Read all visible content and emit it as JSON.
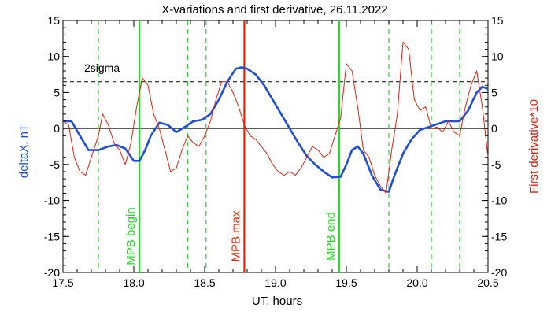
{
  "chart_data": {
    "type": "line",
    "title": "X-variations and first derivative, 26.11.2022",
    "xlabel": "UT, hours",
    "ylabel_left": "deltaX, nT",
    "ylabel_right": "First derivative*10",
    "xlim": [
      17.5,
      20.5
    ],
    "ylim": [
      -20,
      15
    ],
    "x_ticks": [
      17.5,
      18.0,
      18.5,
      19.0,
      19.5,
      20.0,
      20.5
    ],
    "x_tick_labels": [
      "17.5",
      "18.0",
      "18.5",
      "19.0",
      "19.5",
      "20.0",
      "20.5"
    ],
    "y_ticks": [
      -20,
      -15,
      -10,
      -5,
      0,
      5,
      10,
      15
    ],
    "y_tick_labels": [
      "-20",
      "-15",
      "-10",
      "-5",
      "0",
      "5",
      "10",
      "15"
    ],
    "grid": false,
    "colors": {
      "deltaX": "#1f4fd6",
      "derivative": "#e02010",
      "mpb_begin_end": "#22dd22",
      "mpb_max": "#ee2200",
      "dashed_green": "#33cc33",
      "zero_line": "#000000",
      "sigma_line": "#000000",
      "title": "#000000",
      "ylabel_left": "#1f4fd6",
      "ylabel_right": "#e02010"
    },
    "threshold": {
      "label": "2sigma",
      "y": 6.5,
      "style": "dashed"
    },
    "zero_line": 0,
    "vertical_lines": [
      {
        "x": 18.04,
        "label": "MPB begin",
        "color": "mpb_begin_end",
        "style": "solid"
      },
      {
        "x": 18.78,
        "label": "MPB max",
        "color": "mpb_max",
        "style": "solid"
      },
      {
        "x": 19.45,
        "label": "MPB end",
        "color": "mpb_begin_end",
        "style": "solid"
      }
    ],
    "dashed_vertical_lines": [
      17.75,
      18.38,
      18.51,
      19.8,
      20.1,
      20.3
    ],
    "series": [
      {
        "key": "deltaX",
        "x": [
          17.5,
          17.56,
          17.62,
          17.68,
          17.75,
          17.82,
          17.88,
          17.94,
          18.0,
          18.04,
          18.08,
          18.12,
          18.18,
          18.24,
          18.3,
          18.36,
          18.42,
          18.48,
          18.54,
          18.6,
          18.66,
          18.72,
          18.76,
          18.8,
          18.86,
          18.92,
          18.98,
          19.04,
          19.1,
          19.16,
          19.22,
          19.28,
          19.34,
          19.4,
          19.46,
          19.5,
          19.54,
          19.58,
          19.62,
          19.68,
          19.74,
          19.8,
          19.84,
          19.9,
          19.96,
          20.02,
          20.08,
          20.14,
          20.2,
          20.26,
          20.3,
          20.36,
          20.42,
          20.46,
          20.5
        ],
        "values": [
          1.0,
          1.0,
          -1.0,
          -3.0,
          -3.0,
          -2.5,
          -2.3,
          -2.8,
          -4.5,
          -4.5,
          -3.0,
          -1.0,
          0.8,
          0.5,
          -0.5,
          0.2,
          1.0,
          1.2,
          2.0,
          4.0,
          6.5,
          8.3,
          8.5,
          8.3,
          7.5,
          6.0,
          4.0,
          2.0,
          0.0,
          -2.0,
          -3.8,
          -5.0,
          -6.0,
          -6.8,
          -6.7,
          -5.0,
          -3.0,
          -2.5,
          -3.5,
          -6.5,
          -8.5,
          -8.8,
          -6.5,
          -3.5,
          -1.5,
          -0.2,
          0.2,
          0.6,
          1.0,
          1.0,
          1.0,
          2.5,
          5.0,
          5.8,
          5.5
        ]
      },
      {
        "key": "derivative",
        "x": [
          17.5,
          17.54,
          17.58,
          17.62,
          17.66,
          17.7,
          17.75,
          17.78,
          17.82,
          17.86,
          17.9,
          17.94,
          17.98,
          18.02,
          18.06,
          18.1,
          18.14,
          18.18,
          18.22,
          18.26,
          18.3,
          18.34,
          18.38,
          18.42,
          18.46,
          18.5,
          18.54,
          18.58,
          18.62,
          18.66,
          18.7,
          18.74,
          18.78,
          18.82,
          18.86,
          18.9,
          18.94,
          18.98,
          19.02,
          19.06,
          19.1,
          19.14,
          19.18,
          19.22,
          19.26,
          19.3,
          19.34,
          19.38,
          19.42,
          19.46,
          19.5,
          19.54,
          19.58,
          19.62,
          19.66,
          19.7,
          19.74,
          19.78,
          19.82,
          19.86,
          19.9,
          19.94,
          19.98,
          20.02,
          20.06,
          20.1,
          20.14,
          20.18,
          20.22,
          20.26,
          20.3,
          20.34,
          20.38,
          20.42,
          20.46,
          20.5
        ],
        "values": [
          1.0,
          0.5,
          -4.0,
          -6.0,
          -6.5,
          -4.0,
          -1.0,
          2.0,
          0.5,
          -2.0,
          -3.0,
          -5.0,
          -2.0,
          3.0,
          7.0,
          6.0,
          2.0,
          0.0,
          -3.0,
          -6.0,
          -5.5,
          -3.0,
          -1.0,
          -2.0,
          -2.5,
          -1.0,
          1.0,
          4.0,
          6.5,
          6.5,
          5.0,
          3.0,
          0.5,
          -1.0,
          -1.5,
          -2.5,
          -3.5,
          -5.0,
          -6.0,
          -6.5,
          -6.0,
          -6.5,
          -5.5,
          -4.0,
          -2.5,
          -3.0,
          -4.0,
          -3.5,
          -1.0,
          1.5,
          9.0,
          8.0,
          3.0,
          -3.0,
          -4.0,
          -6.5,
          -8.0,
          -9.0,
          -3.0,
          2.0,
          12.0,
          11.0,
          4.0,
          2.5,
          3.0,
          0.0,
          0.2,
          -0.5,
          1.0,
          -0.5,
          -1.0,
          3.0,
          6.0,
          8.0,
          3.0,
          -4.0
        ]
      }
    ],
    "annotations": [
      "2sigma"
    ]
  }
}
